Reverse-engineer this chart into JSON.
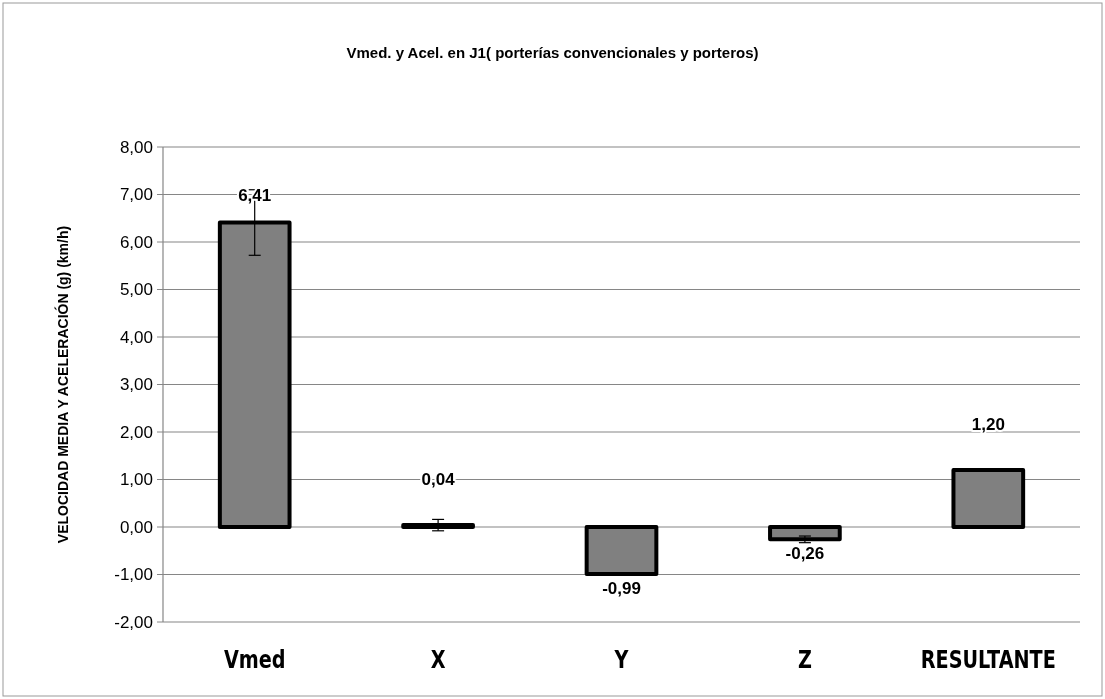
{
  "chart_data": {
    "type": "bar",
    "title": "Vmed.  y Acel. en J1( porterías convencionales y porteros)",
    "ylabel": "VELOCIDAD MEDIA Y ACELERACIÓN (g) (km/h)",
    "categories": [
      "Vmed",
      "X",
      "Y",
      "Z",
      "RESULTANTE"
    ],
    "values": [
      6.41,
      0.04,
      -0.99,
      -0.26,
      1.2
    ],
    "errors": [
      0.69,
      0.12,
      null,
      0.07,
      0.02
    ],
    "value_labels": [
      "6,41",
      "0,04",
      "-0,99",
      "-0,26",
      "1,20"
    ],
    "color": "#808080",
    "ylim": [
      -2,
      8
    ],
    "yticks": [
      {
        "value": -2,
        "label": "-2,00"
      },
      {
        "value": -1,
        "label": "-1,00"
      },
      {
        "value": 0,
        "label": "0,00"
      },
      {
        "value": 1,
        "label": "1,00"
      },
      {
        "value": 2,
        "label": "2,00"
      },
      {
        "value": 3,
        "label": "3,00"
      },
      {
        "value": 4,
        "label": "4,00"
      },
      {
        "value": 5,
        "label": "5,00"
      },
      {
        "value": 6,
        "label": "6,00"
      },
      {
        "value": 7,
        "label": "7,00"
      },
      {
        "value": 8,
        "label": "8,00"
      }
    ],
    "grid": "y"
  }
}
